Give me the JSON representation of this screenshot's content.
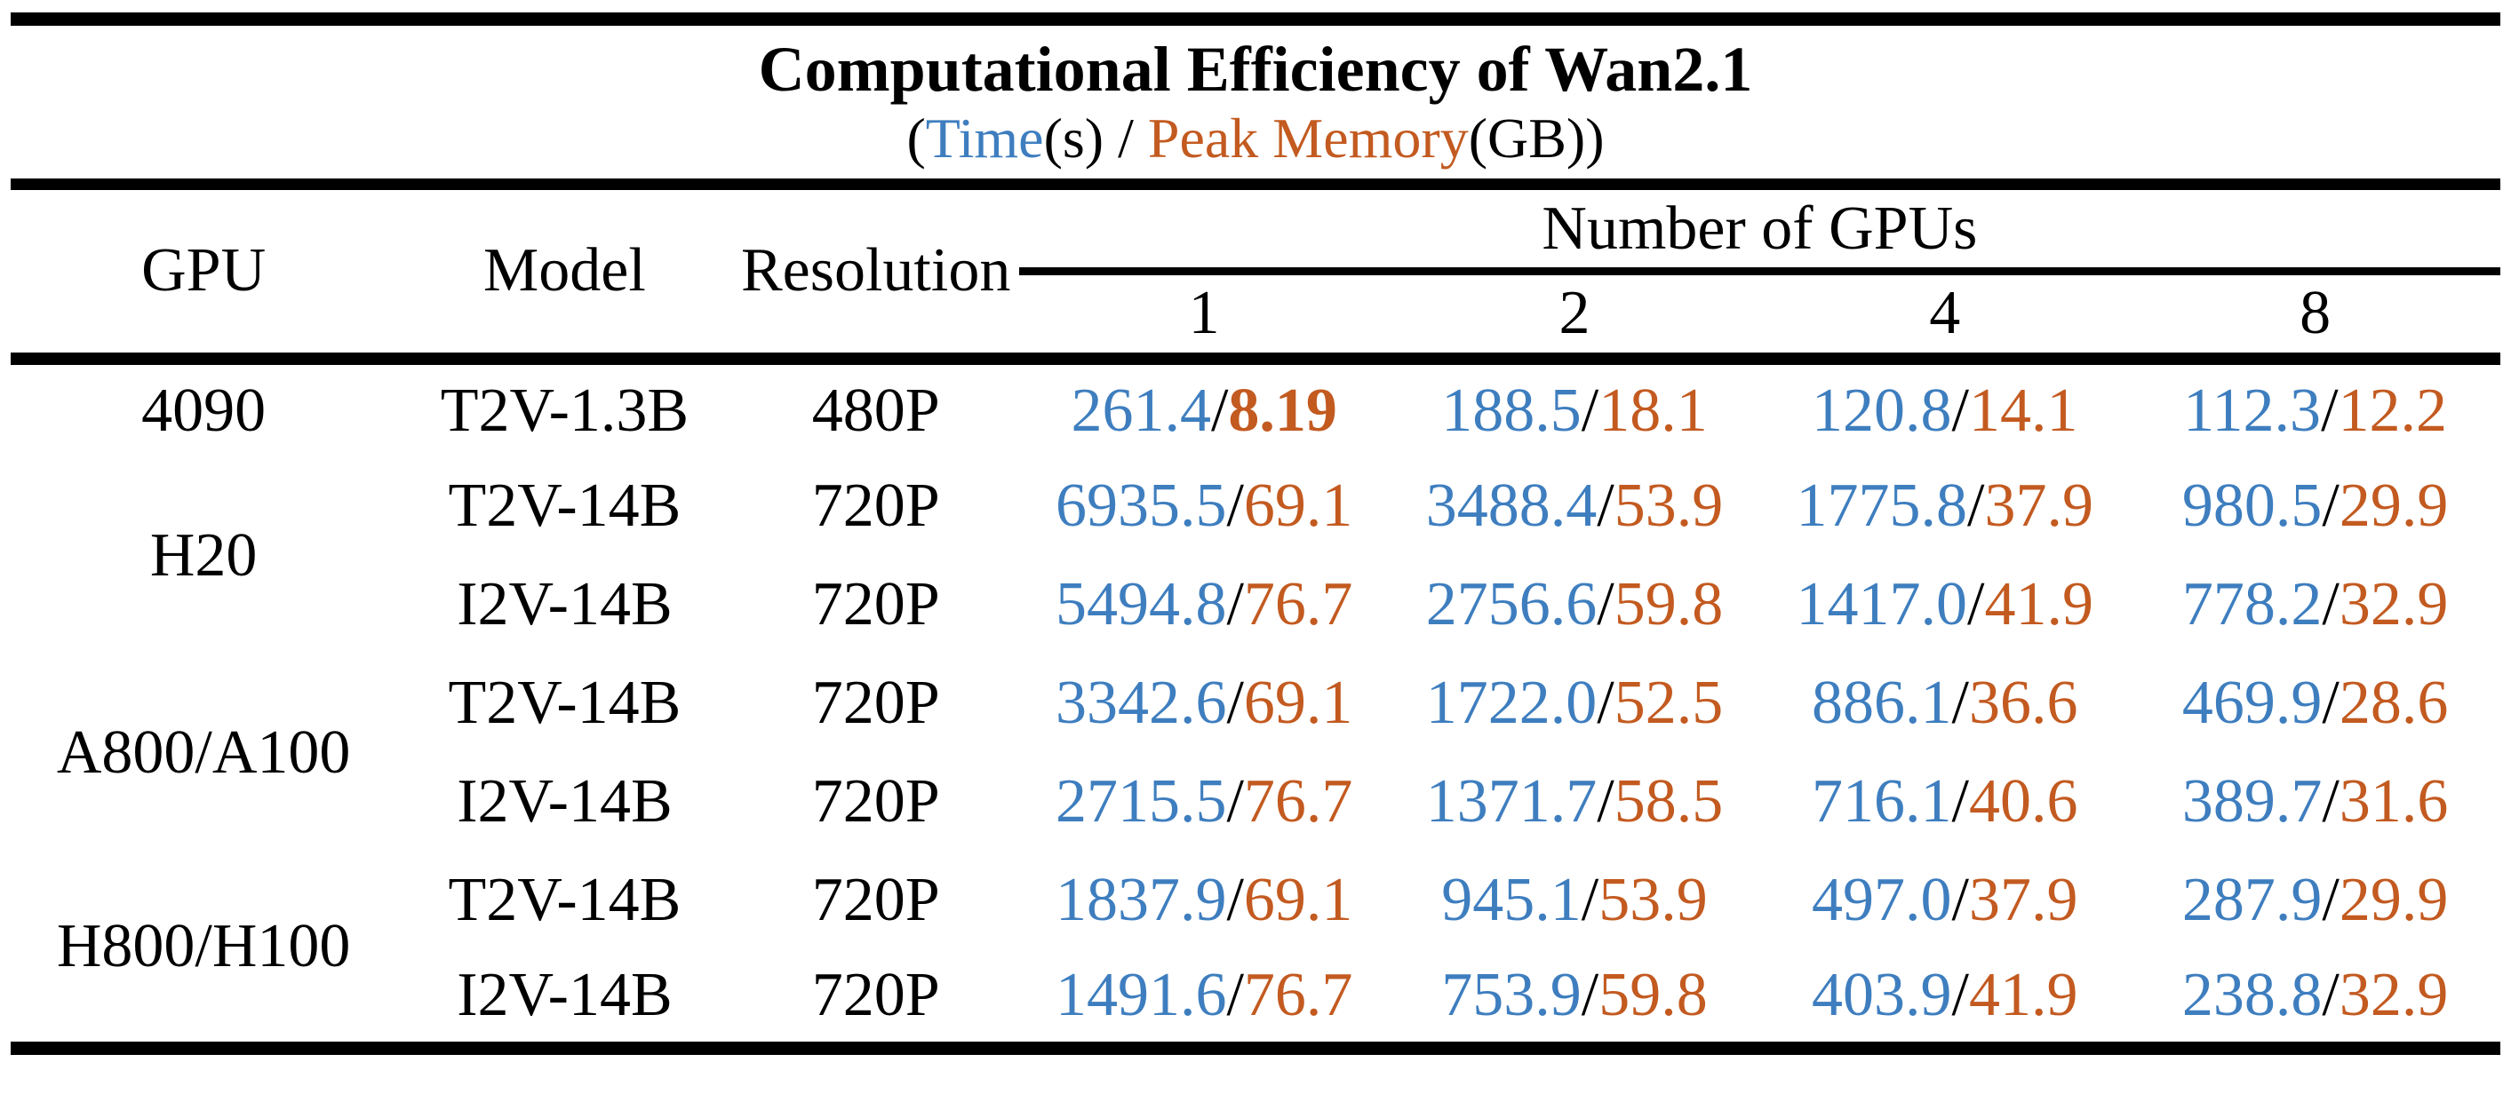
{
  "title": {
    "main": "Computational Efficiency of Wan2.1",
    "subtitle": {
      "open_paren": "(",
      "time_label": "Time",
      "time_unit": "(s)",
      "separator": " / ",
      "memory_label": "Peak Memory",
      "memory_unit": "(GB))"
    }
  },
  "colors": {
    "time_blue": "#3E7EBF",
    "memory_orange": "#C35A20",
    "rule_black": "#000000",
    "background": "#FFFFFF"
  },
  "header": {
    "gpu": "GPU",
    "model": "Model",
    "resolution": "Resolution",
    "gpu_count_group": "Number of GPUs",
    "gpu_counts": [
      "1",
      "2",
      "4",
      "8"
    ]
  },
  "value_separator": "/",
  "rows": [
    {
      "gpu": "4090",
      "model": "T2V-1.3B",
      "resolution": "480P",
      "values": [
        {
          "time": "261.4",
          "memory": "8.19",
          "memory_bold": true
        },
        {
          "time": "188.5",
          "memory": "18.1"
        },
        {
          "time": "120.8",
          "memory": "14.1"
        },
        {
          "time": "112.3",
          "memory": "12.2"
        }
      ]
    },
    {
      "gpu": "H20",
      "model": "T2V-14B",
      "resolution": "720P",
      "values": [
        {
          "time": "6935.5",
          "memory": "69.1"
        },
        {
          "time": "3488.4",
          "memory": "53.9"
        },
        {
          "time": "1775.8",
          "memory": "37.9"
        },
        {
          "time": "980.5",
          "memory": "29.9"
        }
      ]
    },
    {
      "model": "I2V-14B",
      "resolution": "720P",
      "values": [
        {
          "time": "5494.8",
          "memory": "76.7"
        },
        {
          "time": "2756.6",
          "memory": "59.8"
        },
        {
          "time": "1417.0",
          "memory": "41.9"
        },
        {
          "time": "778.2",
          "memory": "32.9"
        }
      ]
    },
    {
      "gpu": "A800/A100",
      "model": "T2V-14B",
      "resolution": "720P",
      "values": [
        {
          "time": "3342.6",
          "memory": "69.1"
        },
        {
          "time": "1722.0",
          "memory": "52.5"
        },
        {
          "time": "886.1",
          "memory": "36.6"
        },
        {
          "time": "469.9",
          "memory": "28.6"
        }
      ]
    },
    {
      "model": "I2V-14B",
      "resolution": "720P",
      "values": [
        {
          "time": "2715.5",
          "memory": "76.7"
        },
        {
          "time": "1371.7",
          "memory": "58.5"
        },
        {
          "time": "716.1",
          "memory": "40.6"
        },
        {
          "time": "389.7",
          "memory": "31.6"
        }
      ]
    },
    {
      "gpu": "H800/H100",
      "model": "T2V-14B",
      "resolution": "720P",
      "values": [
        {
          "time": "1837.9",
          "memory": "69.1"
        },
        {
          "time": "945.1",
          "memory": "53.9"
        },
        {
          "time": "497.0",
          "memory": "37.9"
        },
        {
          "time": "287.9",
          "memory": "29.9"
        }
      ]
    },
    {
      "model": "I2V-14B",
      "resolution": "720P",
      "values": [
        {
          "time": "1491.6",
          "memory": "76.7"
        },
        {
          "time": "753.9",
          "memory": "59.8"
        },
        {
          "time": "403.9",
          "memory": "41.9"
        },
        {
          "time": "238.8",
          "memory": "32.9"
        }
      ]
    }
  ],
  "chart_data": {
    "type": "table",
    "title": "Computational Efficiency of Wan2.1",
    "subtitle": "(Time(s) / Peak Memory(GB))",
    "units": {
      "time": "s",
      "peak_memory": "GB"
    },
    "gpu_counts": [
      1,
      2,
      4,
      8
    ],
    "rows": [
      {
        "gpu": "4090",
        "model": "T2V-1.3B",
        "resolution": "480P",
        "time_s": [
          261.4,
          188.5,
          120.8,
          112.3
        ],
        "peak_memory_gb": [
          8.19,
          18.1,
          14.1,
          12.2
        ]
      },
      {
        "gpu": "H20",
        "model": "T2V-14B",
        "resolution": "720P",
        "time_s": [
          6935.5,
          3488.4,
          1775.8,
          980.5
        ],
        "peak_memory_gb": [
          69.1,
          53.9,
          37.9,
          29.9
        ]
      },
      {
        "gpu": "H20",
        "model": "I2V-14B",
        "resolution": "720P",
        "time_s": [
          5494.8,
          2756.6,
          1417.0,
          778.2
        ],
        "peak_memory_gb": [
          76.7,
          59.8,
          41.9,
          32.9
        ]
      },
      {
        "gpu": "A800/A100",
        "model": "T2V-14B",
        "resolution": "720P",
        "time_s": [
          3342.6,
          1722.0,
          886.1,
          469.9
        ],
        "peak_memory_gb": [
          69.1,
          52.5,
          36.6,
          28.6
        ]
      },
      {
        "gpu": "A800/A100",
        "model": "I2V-14B",
        "resolution": "720P",
        "time_s": [
          2715.5,
          1371.7,
          716.1,
          389.7
        ],
        "peak_memory_gb": [
          76.7,
          58.5,
          40.6,
          31.6
        ]
      },
      {
        "gpu": "H800/H100",
        "model": "T2V-14B",
        "resolution": "720P",
        "time_s": [
          1837.9,
          945.1,
          497.0,
          287.9
        ],
        "peak_memory_gb": [
          69.1,
          53.9,
          37.9,
          29.9
        ]
      },
      {
        "gpu": "H800/H100",
        "model": "I2V-14B",
        "resolution": "720P",
        "time_s": [
          1491.6,
          753.9,
          403.9,
          238.8
        ],
        "peak_memory_gb": [
          76.7,
          59.8,
          41.9,
          32.9
        ]
      }
    ]
  }
}
